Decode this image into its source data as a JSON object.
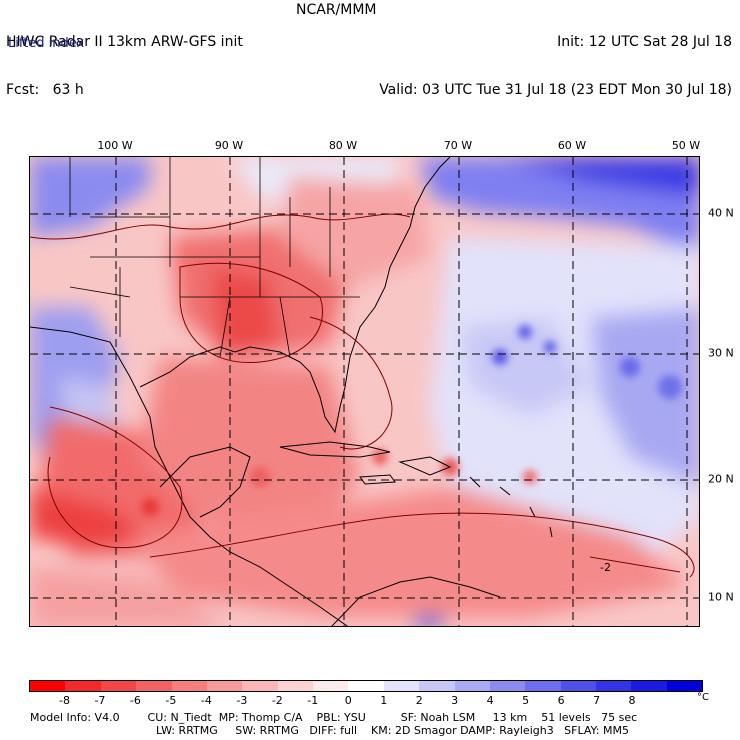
{
  "header": {
    "left_line1": "HIWC Radar II 13km ARW-GFS init",
    "center_line1": "NCAR/MMM",
    "right_line1": "Init: 12 UTC Sat 28 Jul 18",
    "left_line2": "Fcst:   63 h",
    "right_line2": "Valid: 03 UTC Tue 31 Jul 18 (23 EDT Mon 30 Jul 18)",
    "field_name": "Lifted index"
  },
  "map": {
    "lon_labels": [
      "100 W",
      "90 W",
      "80 W",
      "70 W",
      "60 W",
      "50 W"
    ],
    "lat_labels": [
      "40 N",
      "30 N",
      "20 N",
      "10 N"
    ],
    "contour_label": "-2"
  },
  "colorbar": {
    "colors": [
      "#ff0000",
      "#f32a2a",
      "#f04848",
      "#f26464",
      "#f47f7f",
      "#f69a9a",
      "#f9b7b7",
      "#fcd3d3",
      "#fdebeb",
      "#ffffff",
      "#e4e4fc",
      "#c8c8f8",
      "#aaaaf4",
      "#8c8cf0",
      "#6e6eec",
      "#5050e8",
      "#3434e2",
      "#1a1ae0",
      "#0000dd"
    ],
    "ticks": [
      "-8",
      "-7",
      "-6",
      "-5",
      "-4",
      "-3",
      "-2",
      "-1",
      "0",
      "1",
      "2",
      "3",
      "4",
      "5",
      "6",
      "7",
      "8"
    ],
    "unit": "°C"
  },
  "footer": {
    "line1": "Model Info: V4.0        CU: N_Tiedt  MP: Thomp C/A    PBL: YSU          SF: Noah LSM     13 km    51 levels   75 sec",
    "line2": "LW: RRTMG     SW: RRTMG   DIFF: full    KM: 2D Smagor DAMP: Rayleigh3   SFLAY: MM5"
  }
}
